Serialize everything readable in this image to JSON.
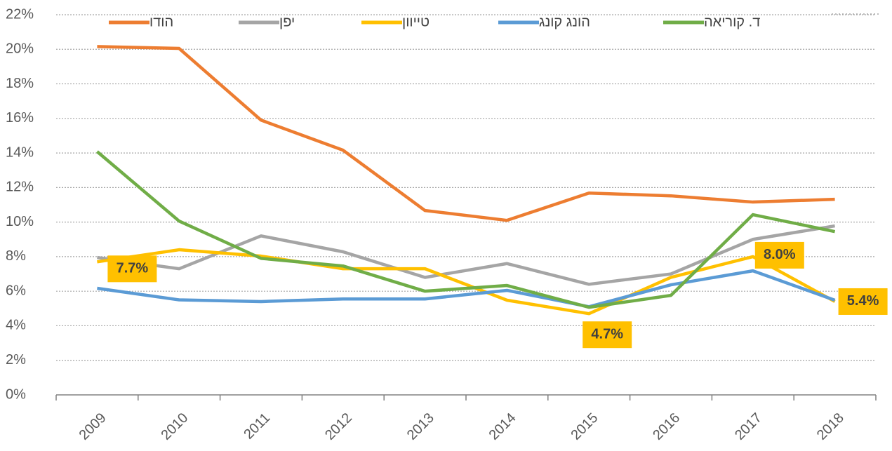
{
  "chart_data": {
    "type": "line",
    "categories": [
      "2009",
      "2010",
      "2011",
      "2012",
      "2013",
      "2014",
      "2015",
      "2016",
      "2017",
      "2018"
    ],
    "series": [
      {
        "name": "הודו",
        "color": "#ed7d31",
        "values": [
          20.16,
          20.05,
          15.9,
          14.16,
          10.67,
          10.1,
          11.68,
          11.52,
          11.16,
          11.32
        ]
      },
      {
        "name": "יפן",
        "color": "#a5a5a5",
        "values": [
          7.95,
          7.3,
          9.2,
          8.28,
          6.8,
          7.6,
          6.4,
          7.0,
          9.0,
          9.78
        ]
      },
      {
        "name": "טייוון",
        "color": "#ffc000",
        "values": [
          7.7,
          8.4,
          8.03,
          7.3,
          7.3,
          5.48,
          4.7,
          6.8,
          8.0,
          5.4
        ],
        "value_labels": [
          "7.7%",
          null,
          null,
          null,
          null,
          null,
          "4.7%",
          null,
          "8.0%",
          "5.4%"
        ]
      },
      {
        "name": "הונג קונג",
        "color": "#5b9bd5",
        "values": [
          6.17,
          5.5,
          5.4,
          5.55,
          5.55,
          6.05,
          5.1,
          6.37,
          7.18,
          5.48
        ]
      },
      {
        "name": "ד. קוריאה",
        "color": "#70ad47",
        "values": [
          14.08,
          10.06,
          7.9,
          7.46,
          6.0,
          6.33,
          5.07,
          5.76,
          10.43,
          9.45
        ]
      }
    ],
    "ylim": [
      0,
      22
    ],
    "yticks": [
      {
        "value": 0,
        "label": "0%"
      },
      {
        "value": 2,
        "label": "2%"
      },
      {
        "value": 4,
        "label": "4%"
      },
      {
        "value": 6,
        "label": "6%"
      },
      {
        "value": 8,
        "label": "8%"
      },
      {
        "value": 10,
        "label": "10%"
      },
      {
        "value": 12,
        "label": "12%"
      },
      {
        "value": 14,
        "label": "14%"
      },
      {
        "value": 16,
        "label": "16%"
      },
      {
        "value": 18,
        "label": "18%"
      },
      {
        "value": 20,
        "label": "20%"
      },
      {
        "value": 22,
        "label": "22%"
      }
    ],
    "grid": true
  }
}
